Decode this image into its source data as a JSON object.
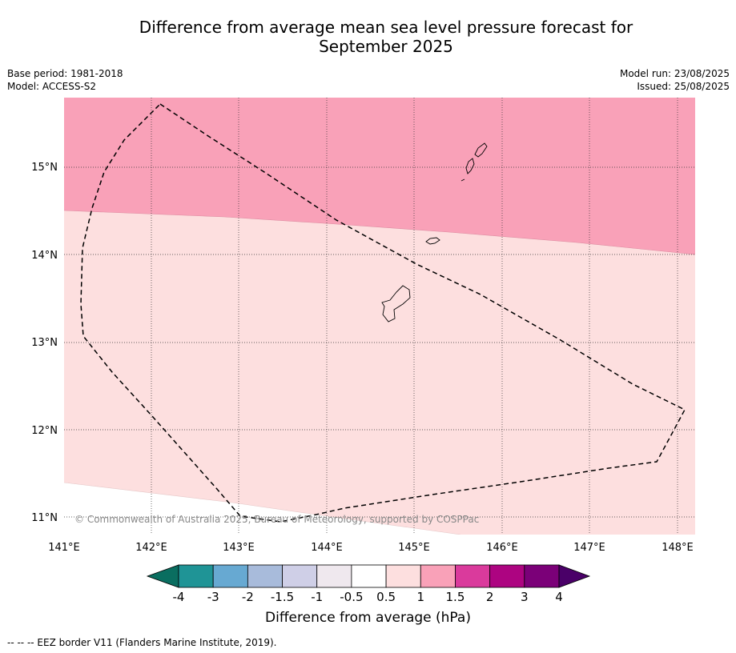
{
  "title_line1": "Difference from average mean sea level pressure forecast for",
  "title_line2": "September 2025",
  "meta": {
    "base_period": "Base period: 1981-2018",
    "model": "Model: ACCESS-S2",
    "model_run": "Model run: 23/08/2025",
    "issued": "Issued: 25/08/2025"
  },
  "map": {
    "lat_labels": [
      "15°N",
      "14°N",
      "13°N",
      "12°N",
      "11°N"
    ],
    "lon_labels": [
      "141°E",
      "142°E",
      "143°E",
      "144°E",
      "145°E",
      "146°E",
      "147°E",
      "148°E"
    ],
    "copyright": "© Commonwealth of Australia 2025, Bureau of Meteorology, supported by COSPPac",
    "colors": {
      "band_1_to_1_5": "#f9a1b8",
      "band_0_5_to_1": "#fddfdf",
      "band_m0_5_to_0_5": "#ffffff"
    }
  },
  "colorbar": {
    "title": "Difference from average (hPa)",
    "ticks": [
      "-4",
      "-3",
      "-2",
      "-1.5",
      "-1",
      "-0.5",
      "0.5",
      "1",
      "1.5",
      "2",
      "3",
      "4"
    ],
    "colors": [
      "#0a6e60",
      "#1f9496",
      "#67a9d2",
      "#a8bbdb",
      "#cfcfe7",
      "#efe8ee",
      "#ffffff",
      "#fddfdf",
      "#f9a1b8",
      "#da3a9c",
      "#ad0481",
      "#7b0078",
      "#4a0068"
    ]
  },
  "footer": "--  --  -- EEZ border V11 (Flanders Marine Institute, 2019)."
}
